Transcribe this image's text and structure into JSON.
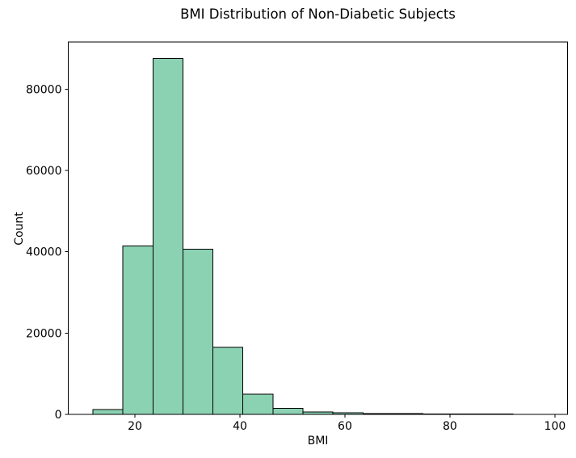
{
  "title": "BMI Distribution of Non-Diabetic Subjects",
  "chart_data": {
    "type": "bar",
    "subtype": "histogram",
    "title": "BMI Distribution of Non-Diabetic Subjects",
    "xlabel": "BMI",
    "ylabel": "Count",
    "bin_edges": [
      12,
      17.71,
      23.43,
      29.14,
      34.86,
      40.57,
      46.29,
      52,
      57.71,
      63.43,
      69.14,
      74.86,
      80.57,
      86.29,
      92
    ],
    "counts": [
      1200,
      41400,
      87500,
      40600,
      16500,
      5000,
      1500,
      600,
      350,
      220,
      160,
      120,
      90,
      70
    ],
    "xlim": [
      7.3,
      102.4
    ],
    "ylim": [
      0,
      91600
    ],
    "xticks": [
      20,
      40,
      60,
      80,
      100
    ],
    "yticks": [
      0,
      20000,
      40000,
      60000,
      80000
    ],
    "grid": false,
    "legend": null,
    "colors": {
      "bar_fill": "#8bd2b3",
      "bar_edge": "#000000",
      "axis": "#000000",
      "text": "#000000",
      "background": "#ffffff"
    }
  }
}
